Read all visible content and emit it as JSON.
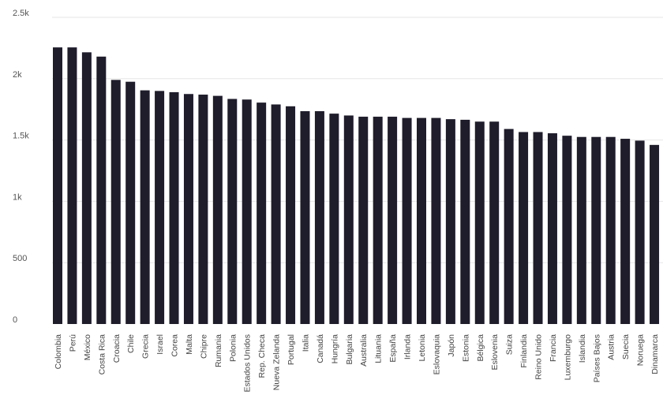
{
  "chart_data": {
    "type": "bar",
    "title": "",
    "xlabel": "",
    "ylabel": "",
    "ylim": [
      0,
      2500
    ],
    "yticks": [
      {
        "value": 0,
        "label": "0"
      },
      {
        "value": 500,
        "label": "500"
      },
      {
        "value": 1000,
        "label": "1k"
      },
      {
        "value": 1500,
        "label": "1.5k"
      },
      {
        "value": 2000,
        "label": "2k"
      },
      {
        "value": 2500,
        "label": "2.5k"
      }
    ],
    "grid": true,
    "legend": "none",
    "colors": {
      "bar": "#1f1c2b",
      "grid": "#e6e6e6",
      "text": "#555555"
    },
    "categories": [
      "Colombia",
      "Perú",
      "México",
      "Costa Rica",
      "Croacia",
      "Chile",
      "Grecia",
      "Israel",
      "Corea",
      "Malta",
      "Chipre",
      "Rumania",
      "Polonia",
      "Estados Unidos",
      "Rep. Checa",
      "Nueva Zelanda",
      "Portugal",
      "Italia",
      "Canadá",
      "Hungría",
      "Bulgaria",
      "Australia",
      "Lituania",
      "España",
      "Irlanda",
      "Letonia",
      "Eslovaquia",
      "Japón",
      "Estonia",
      "Bélgica",
      "Eslovenia",
      "Suiza",
      "Finlandia",
      "Reino Unido",
      "Francia",
      "Luxemburgo",
      "Islandia",
      "Países Bajos",
      "Austria",
      "Suecia",
      "Noruega",
      "Dinamarca"
    ],
    "values": [
      2255,
      2255,
      2215,
      2180,
      1990,
      1975,
      1905,
      1900,
      1890,
      1875,
      1870,
      1860,
      1835,
      1830,
      1805,
      1790,
      1775,
      1735,
      1735,
      1715,
      1700,
      1690,
      1690,
      1690,
      1680,
      1680,
      1680,
      1670,
      1665,
      1650,
      1650,
      1590,
      1565,
      1565,
      1555,
      1535,
      1525,
      1525,
      1525,
      1510,
      1495,
      1460
    ]
  }
}
